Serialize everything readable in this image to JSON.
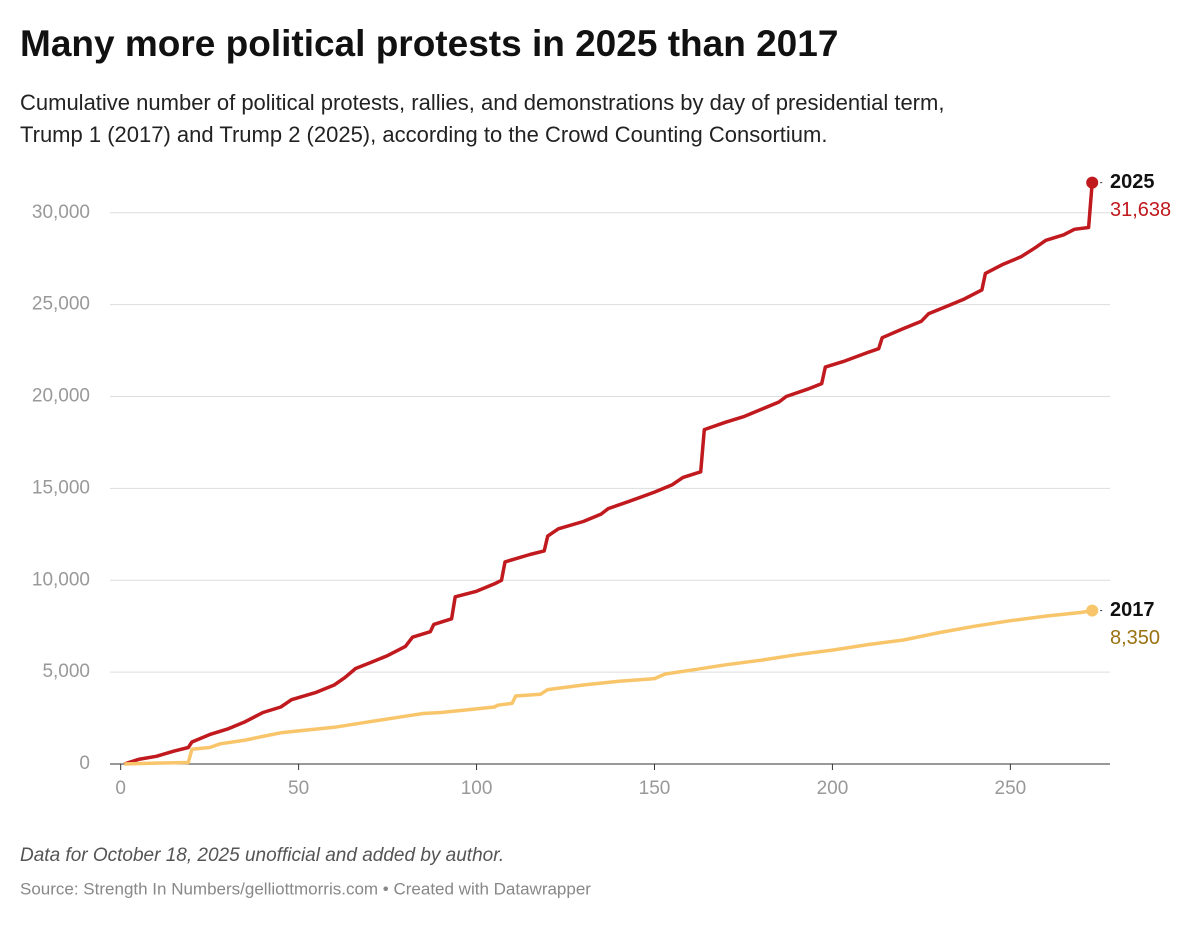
{
  "chart_data": {
    "type": "line",
    "title": "Many more political protests in 2025 than 2017",
    "subtitle": "Cumulative number of political protests, rallies, and demonstrations by day of presidential term, Trump 1 (2017) and Trump 2 (2025), according to the Crowd Counting Consortium.",
    "note": "Data for October 18, 2025 unofficial and added by author.",
    "source": "Source: Strength In Numbers/gelliottmorris.com • Created with Datawrapper",
    "xlim": [
      -3,
      278
    ],
    "xticks": [
      0,
      50,
      100,
      150,
      200,
      250
    ],
    "ylim": [
      0,
      32000
    ],
    "yticks": [
      0,
      {
        "value": 5000,
        "label": "5,000"
      },
      {
        "value": 10000,
        "label": "10,000"
      },
      {
        "value": 15000,
        "label": "15,000"
      },
      {
        "value": 20000,
        "label": "20,000"
      },
      {
        "value": 25000,
        "label": "25,000"
      },
      {
        "value": 30000,
        "label": "30,000"
      }
    ],
    "grid": true,
    "series": [
      {
        "name": "2025",
        "color": "#c0191e",
        "label_color": "#c0191e",
        "x": [
          1,
          5,
          10,
          15,
          19,
          20,
          25,
          30,
          35,
          40,
          45,
          48,
          55,
          60,
          63,
          66,
          70,
          75,
          80,
          82,
          87,
          88,
          93,
          94,
          100,
          105,
          107,
          108,
          115,
          119,
          120,
          123,
          130,
          135,
          137,
          143,
          150,
          155,
          158,
          163,
          164,
          170,
          175,
          180,
          185,
          187,
          193,
          197,
          198,
          203,
          210,
          213,
          214,
          220,
          225,
          227,
          232,
          237,
          242,
          243,
          248,
          253,
          257,
          260,
          265,
          268,
          272,
          273
        ],
        "values": [
          0,
          250,
          420,
          700,
          900,
          1200,
          1600,
          1900,
          2300,
          2800,
          3100,
          3500,
          3900,
          4300,
          4700,
          5200,
          5500,
          5900,
          6400,
          6900,
          7200,
          7600,
          7900,
          9100,
          9400,
          9800,
          10000,
          11000,
          11400,
          11600,
          12400,
          12800,
          13200,
          13600,
          13900,
          14300,
          14800,
          15200,
          15600,
          15900,
          18200,
          18600,
          18900,
          19300,
          19700,
          20000,
          20400,
          20700,
          21600,
          21900,
          22400,
          22600,
          23200,
          23700,
          24100,
          24500,
          24900,
          25300,
          25800,
          26700,
          27200,
          27600,
          28100,
          28500,
          28800,
          29100,
          29200,
          31638
        ],
        "value_labels": [
          null,
          null,
          null,
          null,
          null,
          null,
          null,
          null,
          null,
          null,
          null,
          null,
          null,
          null,
          null,
          null,
          null,
          null,
          null,
          null,
          null,
          null,
          null,
          null,
          null,
          null,
          null,
          null,
          null,
          null,
          null,
          null,
          null,
          null,
          null,
          null,
          null,
          null,
          null,
          null,
          null,
          null,
          null,
          null,
          null,
          null,
          null,
          null,
          null,
          null,
          null,
          null,
          null,
          null,
          null,
          null,
          null,
          null,
          null,
          null,
          null,
          null,
          null,
          null,
          null,
          null,
          null,
          "31,638"
        ]
      },
      {
        "name": "2017",
        "color": "#f8c56b",
        "label_color": "#9a7212",
        "x": [
          1,
          10,
          19,
          20,
          25,
          28,
          35,
          40,
          45,
          50,
          60,
          70,
          80,
          85,
          90,
          100,
          105,
          106,
          110,
          111,
          118,
          120,
          130,
          140,
          150,
          153,
          160,
          170,
          180,
          190,
          200,
          210,
          220,
          230,
          240,
          250,
          260,
          270,
          273
        ],
        "values": [
          0,
          50,
          80,
          800,
          900,
          1100,
          1300,
          1500,
          1700,
          1800,
          2000,
          2300,
          2600,
          2750,
          2800,
          3000,
          3100,
          3200,
          3300,
          3700,
          3800,
          4050,
          4300,
          4500,
          4650,
          4900,
          5100,
          5400,
          5650,
          5950,
          6200,
          6500,
          6750,
          7150,
          7500,
          7800,
          8050,
          8250,
          8350
        ],
        "value_labels": [
          null,
          null,
          null,
          null,
          null,
          null,
          null,
          null,
          null,
          null,
          null,
          null,
          null,
          null,
          null,
          null,
          null,
          null,
          null,
          null,
          null,
          null,
          null,
          null,
          null,
          null,
          null,
          null,
          null,
          null,
          null,
          null,
          null,
          null,
          null,
          null,
          null,
          null,
          "8,350"
        ]
      }
    ]
  }
}
